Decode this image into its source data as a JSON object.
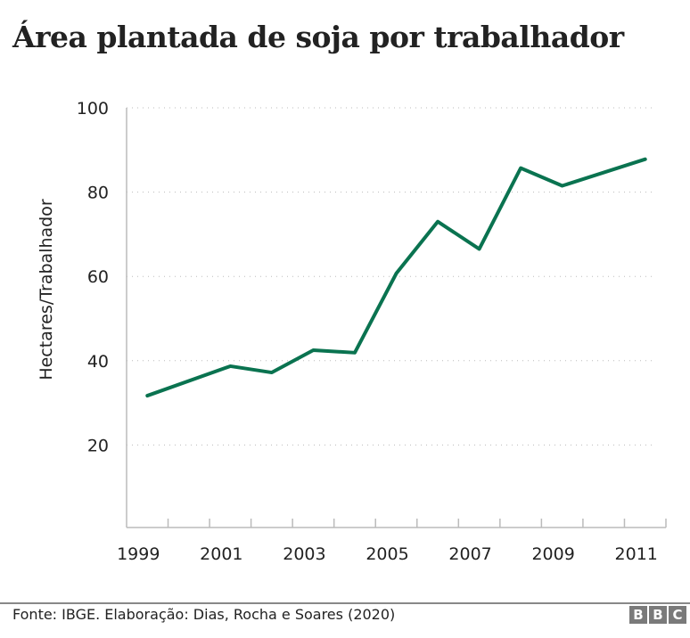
{
  "chart_data": {
    "type": "line",
    "title": "Área plantada de soja por trabalhador",
    "ylabel": "Hectares/Trabalhador",
    "xlabel": "",
    "ylim": [
      0,
      100
    ],
    "yticks": [
      20,
      40,
      60,
      80,
      100
    ],
    "xticks": [
      "1999",
      "2001",
      "2003",
      "2005",
      "2007",
      "2009",
      "2011"
    ],
    "years": [
      1999,
      2000,
      2001,
      2002,
      2003,
      2004,
      2005,
      2006,
      2007,
      2008,
      2009,
      2010,
      2011
    ],
    "x": [
      1999,
      2001,
      2002,
      2003,
      2004,
      2005,
      2006,
      2007,
      2008,
      2009,
      2011
    ],
    "values": [
      31.7,
      38.7,
      37.2,
      42.5,
      41.9,
      60.7,
      73.0,
      66.5,
      85.7,
      81.5,
      87.8
    ],
    "grid": "horizontal dotted",
    "color": "#0a7350"
  },
  "footer": {
    "source": "Fonte: IBGE. Elaboração: Dias, Rocha e Soares (2020)",
    "logo": [
      "B",
      "B",
      "C"
    ]
  }
}
